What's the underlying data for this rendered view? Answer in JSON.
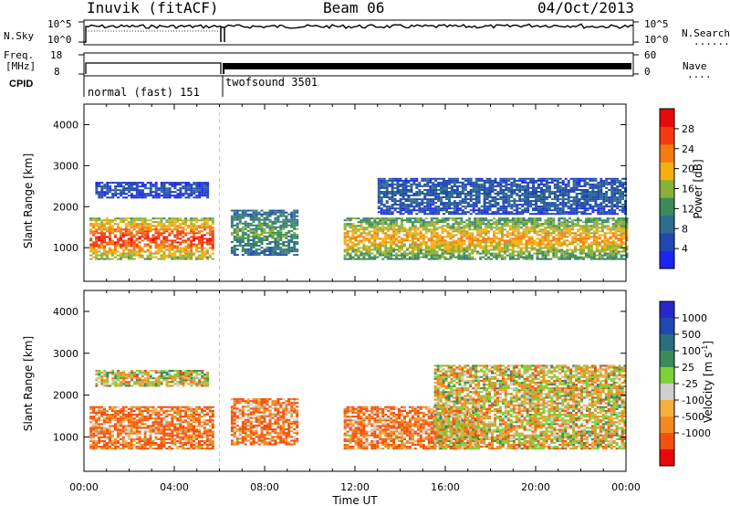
{
  "header": {
    "station": "Inuvik (fitACF)",
    "beam": "Beam 06",
    "date": "04/Oct/2013"
  },
  "top_panel": {
    "left_label": "N.Sky",
    "left_ticks": [
      "10^5",
      "10^0"
    ],
    "right_ticks": [
      "10^5",
      "10^0"
    ],
    "right_label": "N.Search",
    "right_marker": "......."
  },
  "freq_panel": {
    "left_label_1": "Freq.",
    "left_label_2": "[MHz]",
    "left_ticks": [
      "18",
      "8"
    ],
    "right_ticks": [
      "60",
      "0"
    ],
    "right_label": "Nave",
    "right_marker": "...."
  },
  "cpid": {
    "label": "CPID",
    "segments": [
      "normal (fast) 151",
      "twofsound 3501"
    ]
  },
  "colors": {
    "power": [
      "#1c24f0",
      "#2048b0",
      "#2e6e8a",
      "#3c8a5a",
      "#8ab03a",
      "#f4b010",
      "#f27b12",
      "#f43a10",
      "#e8080a"
    ],
    "velocity": [
      "#e8080a",
      "#f45010",
      "#f28a20",
      "#f6b040",
      "#cfcfcf",
      "#7cd23a",
      "#3c8a5a",
      "#2a6f7d",
      "#2048b0",
      "#2828c8"
    ]
  },
  "chart_data": [
    {
      "type": "heatmap",
      "name": "power",
      "xlabel": "",
      "ylabel": "Slant Range [km]",
      "x_range": [
        "00:00",
        "24:00"
      ],
      "ylim": [
        180,
        4500
      ],
      "yticks": [
        1000,
        2000,
        3000,
        4000
      ],
      "colorbar": {
        "label": "Power [dB]",
        "ticks": [
          4,
          8,
          12,
          16,
          20,
          24,
          28
        ],
        "range": [
          0,
          32
        ]
      },
      "features": [
        {
          "time_range": [
            "00:15",
            "05:45"
          ],
          "range_km": [
            700,
            1700
          ],
          "level_db": 28
        },
        {
          "time_range": [
            "00:30",
            "05:30"
          ],
          "range_km": [
            2200,
            2600
          ],
          "level_db": 6
        },
        {
          "time_range": [
            "06:30",
            "09:30"
          ],
          "range_km": [
            800,
            1900
          ],
          "level_db": 14
        },
        {
          "time_range": [
            "11:30",
            "24:00"
          ],
          "range_km": [
            700,
            1700
          ],
          "level_db": 22
        },
        {
          "time_range": [
            "13:00",
            "24:00"
          ],
          "range_km": [
            1800,
            2700
          ],
          "level_db": 8
        }
      ]
    },
    {
      "type": "heatmap",
      "name": "velocity",
      "xlabel": "Time UT",
      "ylabel": "Slant Range [km]",
      "x_range": [
        "00:00",
        "24:00"
      ],
      "xticks": [
        "00:00",
        "04:00",
        "08:00",
        "12:00",
        "16:00",
        "20:00",
        "00:00"
      ],
      "ylim": [
        180,
        4500
      ],
      "yticks": [
        1000,
        2000,
        3000,
        4000
      ],
      "colorbar": {
        "label": "Velocity [m s",
        "label_sup": "-1",
        "label_end": "]",
        "ticks": [
          "1000",
          "500",
          "100",
          "25",
          "-25",
          "-100",
          "-500",
          "-1000"
        ]
      },
      "features": [
        {
          "time_range": [
            "00:15",
            "05:45"
          ],
          "range_km": [
            700,
            1700
          ],
          "velocity": -100
        },
        {
          "time_range": [
            "00:30",
            "05:30"
          ],
          "range_km": [
            2200,
            2600
          ],
          "velocity": 10
        },
        {
          "time_range": [
            "06:30",
            "09:30"
          ],
          "range_km": [
            800,
            1900
          ],
          "velocity": -100
        },
        {
          "time_range": [
            "11:30",
            "17:30"
          ],
          "range_km": [
            700,
            1700
          ],
          "velocity": -100
        },
        {
          "time_range": [
            "15:30",
            "24:00"
          ],
          "range_km": [
            700,
            2700
          ],
          "velocity": 0
        }
      ]
    }
  ]
}
